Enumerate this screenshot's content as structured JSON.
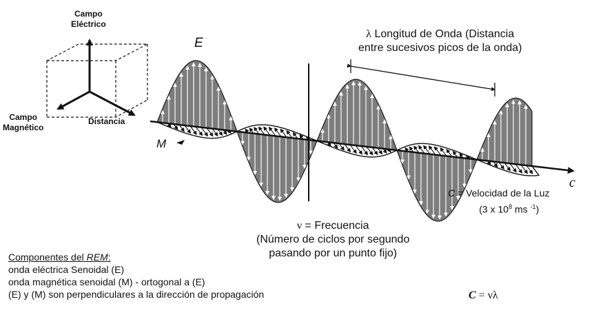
{
  "axes_box": {
    "electric_field_label": [
      "Campo",
      "Eléctrico"
    ],
    "magnetic_field_label": [
      "Campo",
      "Magnético"
    ],
    "distance_label": "Distancia"
  },
  "wave": {
    "e_label": "E",
    "m_label": "M",
    "c_label": "c"
  },
  "wavelength": {
    "symbol": "λ",
    "text_line1": "Longitud de Onda (Distancia",
    "text_line2": "entre sucesivos picos de la onda)"
  },
  "speed": {
    "c_symbol": "C",
    "text": "= Velocidad de la Luz",
    "value_prefix": "(3 x 10",
    "exponent": "8",
    "unit": "ms",
    "unit_exponent": "-1",
    "close": ")"
  },
  "frequency": {
    "symbol": "ν",
    "line1": "= Frecuencia",
    "line2": "(Número de ciclos por segundo",
    "line3": "pasando por un punto fijo)"
  },
  "components": {
    "title_prefix": "Componentes del ",
    "title_em": "REM",
    "title_suffix": ":",
    "items": [
      "onda eléctrica Senoidal (E)",
      "onda magnética senoidal (M) - ortogonal a (E)",
      "(E) y (M) son perpendiculares a la dirección de propagación"
    ]
  },
  "formula": {
    "lhs": "C",
    "eq": " = νλ"
  }
}
